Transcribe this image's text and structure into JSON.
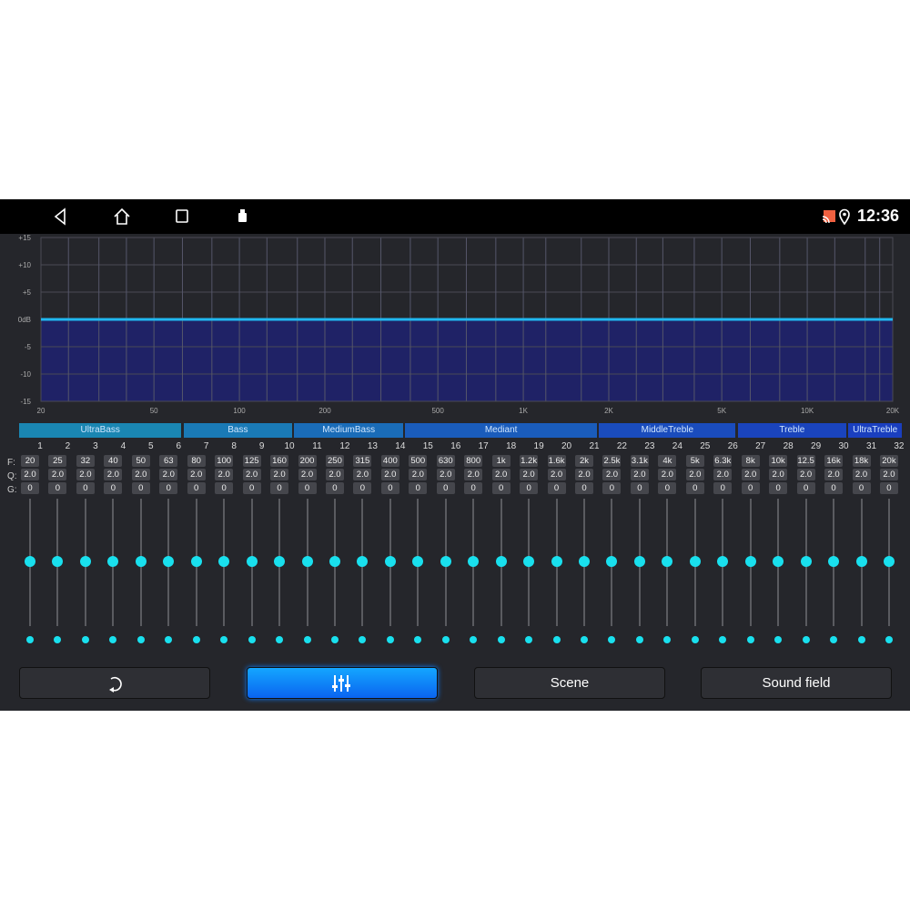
{
  "status": {
    "time": "12:36",
    "icons": [
      "cast-icon",
      "location-icon"
    ]
  },
  "nav": [
    "back-icon",
    "home-icon",
    "recents-icon",
    "usb-icon"
  ],
  "chart_data": {
    "type": "area",
    "xscale": "log",
    "xlim": [
      20,
      20000
    ],
    "ylim": [
      -15,
      15
    ],
    "yticks": [
      "+15",
      "+10",
      "+5",
      "0dB",
      "-5",
      "-10",
      "-15"
    ],
    "xticks": [
      "20",
      "50",
      "100",
      "200",
      "500",
      "1K",
      "2K",
      "5K",
      "10K",
      "20K"
    ],
    "grid": true,
    "curve_db": 0,
    "colors": {
      "line": "#20b8f0",
      "fill": "#1f2266"
    }
  },
  "groups": [
    {
      "label": "UltraBass",
      "bands": [
        1,
        6
      ],
      "color": "#1a86b2"
    },
    {
      "label": "Bass",
      "bands": [
        7,
        10
      ],
      "color": "#1a7ab6"
    },
    {
      "label": "MediumBass",
      "bands": [
        11,
        14
      ],
      "color": "#1a6cb8"
    },
    {
      "label": "Mediant",
      "bands": [
        15,
        21
      ],
      "color": "#1a5cbb"
    },
    {
      "label": "MiddleTreble",
      "bands": [
        22,
        26
      ],
      "color": "#1a4cbd"
    },
    {
      "label": "Treble",
      "bands": [
        27,
        30
      ],
      "color": "#1a44bd"
    },
    {
      "label": "UltraTreble",
      "bands": [
        31,
        32
      ],
      "color": "#1a3fbf"
    }
  ],
  "row_labels": {
    "f": "F:",
    "q": "Q:",
    "g": "G:"
  },
  "bands": {
    "f": [
      "20",
      "25",
      "32",
      "40",
      "50",
      "63",
      "80",
      "100",
      "125",
      "160",
      "200",
      "250",
      "315",
      "400",
      "500",
      "630",
      "800",
      "1k",
      "1.2k",
      "1.6k",
      "2k",
      "2.5k",
      "3.1k",
      "4k",
      "5k",
      "6.3k",
      "8k",
      "10k",
      "12.5",
      "16k",
      "18k",
      "20k"
    ],
    "q": "2.0",
    "g": "0"
  },
  "buttons": {
    "reset_icon": "reset-icon",
    "eq_icon": "sliders-icon",
    "scene": "Scene",
    "sound_field": "Sound field",
    "active": "eq"
  }
}
